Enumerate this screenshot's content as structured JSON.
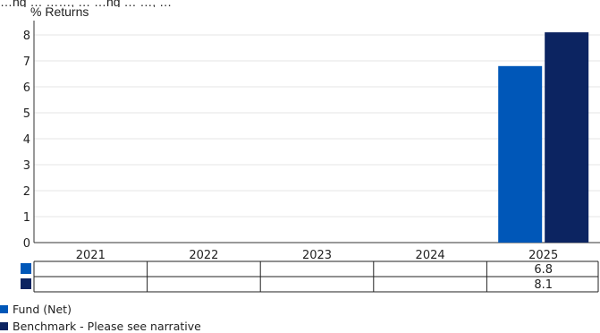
{
  "top_caption": "…ng … ……, … …ng … …, …",
  "chart_data": {
    "type": "bar",
    "ylabel": "% Returns",
    "xlabel": "",
    "categories": [
      "2021",
      "2022",
      "2023",
      "2024",
      "2025"
    ],
    "ylim": [
      0,
      8
    ],
    "yticks": [
      0,
      1,
      2,
      3,
      4,
      5,
      6,
      7,
      8
    ],
    "grid": true,
    "legend_position": "bottom-left",
    "series": [
      {
        "name": "Fund (Net)",
        "color": "#0057b8",
        "values": [
          null,
          null,
          null,
          null,
          6.8
        ]
      },
      {
        "name": "Benchmark - Please see narrative",
        "color": "#0c2461",
        "values": [
          null,
          null,
          null,
          null,
          8.1
        ]
      }
    ],
    "table_values": [
      [
        "",
        "",
        "",
        "",
        "6.8"
      ],
      [
        "",
        "",
        "",
        "",
        "8.1"
      ]
    ]
  }
}
